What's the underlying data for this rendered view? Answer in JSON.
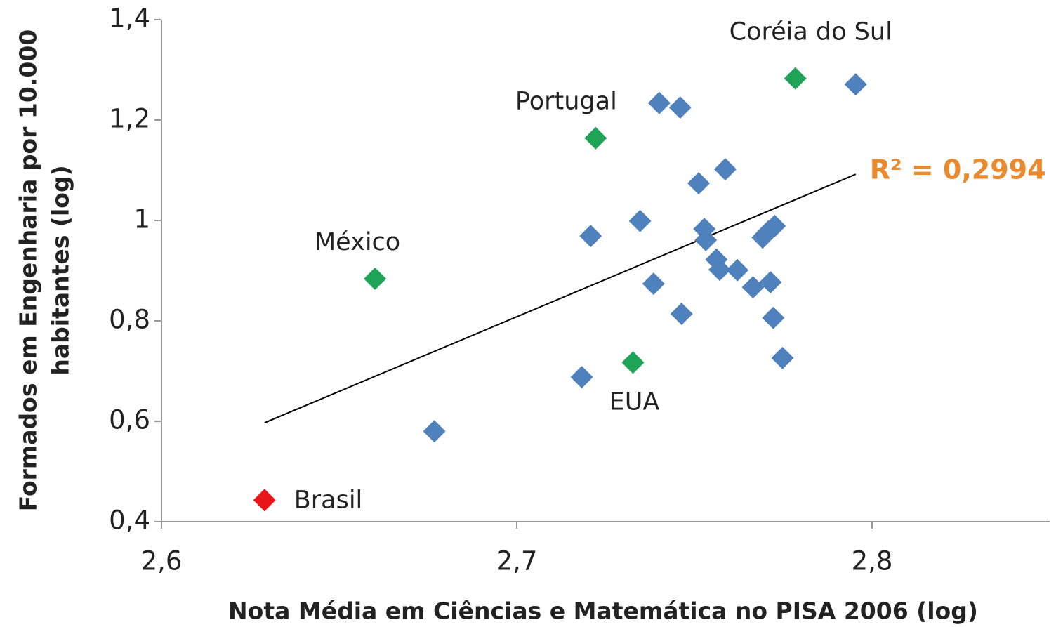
{
  "chart_data": {
    "type": "scatter",
    "y_label": [
      "Formados em Engenharia por 10.000",
      "habitantes (log)"
    ],
    "x_label": "Nota Média em Ciências e Matemática no PISA 2006 (log)",
    "xlim": [
      2.6,
      2.85
    ],
    "ylim": [
      0.4,
      1.4
    ],
    "xticks": [
      {
        "value": 2.6,
        "label": "2,6"
      },
      {
        "value": 2.7,
        "label": "2,7"
      },
      {
        "value": 2.8,
        "label": "2,8"
      }
    ],
    "yticks": [
      {
        "value": 0.4,
        "label": "0,4"
      },
      {
        "value": 0.6,
        "label": "0,6"
      },
      {
        "value": 0.8,
        "label": "0,8"
      },
      1,
      {
        "value": 1.2,
        "label": "1,2"
      },
      {
        "value": 1.4,
        "label": "1,4"
      }
    ],
    "grid": false,
    "series": [
      {
        "color": "#4f81bd",
        "x": [
          2.6768,
          2.7183,
          2.7208,
          2.7347,
          2.7385,
          2.7401,
          2.746,
          2.7464,
          2.7512,
          2.7587,
          2.7528,
          2.7532,
          2.7562,
          2.7571,
          2.7621,
          2.7665,
          2.7692,
          2.7708,
          2.7726,
          2.7714,
          2.7722,
          2.7748,
          2.7954
        ],
        "values": [
          0.58,
          0.688,
          0.969,
          0.999,
          0.874,
          1.234,
          1.225,
          0.814,
          1.074,
          1.102,
          0.983,
          0.961,
          0.922,
          0.902,
          0.901,
          0.867,
          0.966,
          0.978,
          0.989,
          0.877,
          0.806,
          0.726,
          1.271
        ]
      },
      {
        "color": "#1fa356",
        "x": [
          2.6601,
          2.7222,
          2.7327,
          2.7784
        ],
        "values": [
          0.884,
          1.164,
          0.717,
          1.283
        ],
        "labels": [
          "México",
          "Portugal",
          "EUA",
          "Coréia do Sul"
        ]
      },
      {
        "color": "#e8161b",
        "x": [
          2.629
        ],
        "values": [
          0.443
        ],
        "labels": [
          "Brasil"
        ]
      }
    ],
    "trendline": {
      "x": [
        2.629,
        2.7954
      ],
      "values": [
        0.597,
        1.092
      ],
      "color": "#000000",
      "label": "R² = 0,2994",
      "label_color": "#e98a2e"
    }
  }
}
